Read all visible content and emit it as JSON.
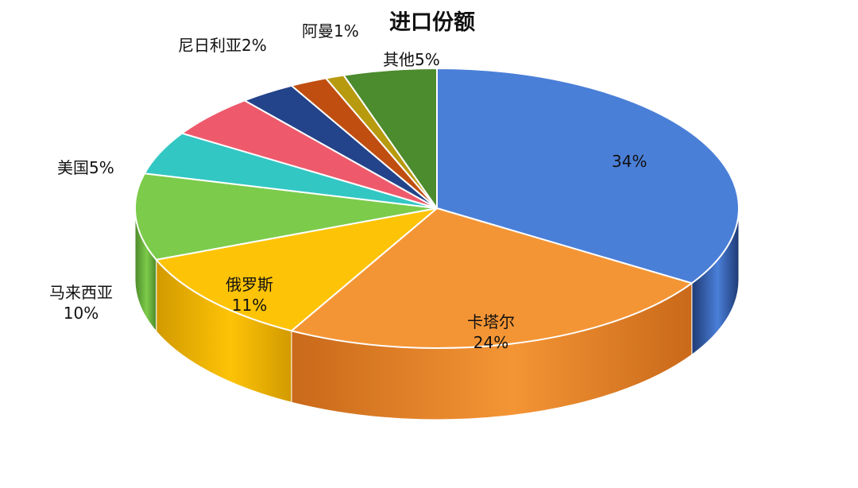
{
  "chart_data": {
    "type": "pie",
    "title": "进口份额",
    "style": "3d",
    "slices": [
      {
        "name": "",
        "value": 34,
        "pct_label": "34%",
        "color": "#4A7FD8",
        "side_color": "#1E3A74"
      },
      {
        "name": "卡塔尔",
        "value": 24,
        "pct_label": "24%",
        "color": "#F49535",
        "side_color": "#C9691A"
      },
      {
        "name": "俄罗斯",
        "value": 11,
        "pct_label": "11%",
        "color": "#FDC307",
        "side_color": "#D29A00"
      },
      {
        "name": "马来西亚",
        "value": 10,
        "pct_label": "10%",
        "color": "#7CCB4B",
        "side_color": "#4E8A2A"
      },
      {
        "name": "美国",
        "value": 5,
        "pct_label": "5%",
        "color": "#33C7C4",
        "side_color": "#1E8F8D"
      },
      {
        "name": "",
        "value": 5,
        "pct_label": "",
        "color": "#EE5A6C",
        "side_color": "#B53A4A"
      },
      {
        "name": "",
        "value": 3,
        "pct_label": "",
        "color": "#23438A",
        "side_color": "#142A5C"
      },
      {
        "name": "尼日利亚",
        "value": 2,
        "pct_label": "2%",
        "color": "#C04E10",
        "side_color": "#8A360A"
      },
      {
        "name": "阿曼",
        "value": 1,
        "pct_label": "1%",
        "color": "#B89A0F",
        "side_color": "#7E6A08"
      },
      {
        "name": "其他",
        "value": 5,
        "pct_label": "5%",
        "color": "#4C8B2E",
        "side_color": "#2F5B1C"
      }
    ]
  }
}
